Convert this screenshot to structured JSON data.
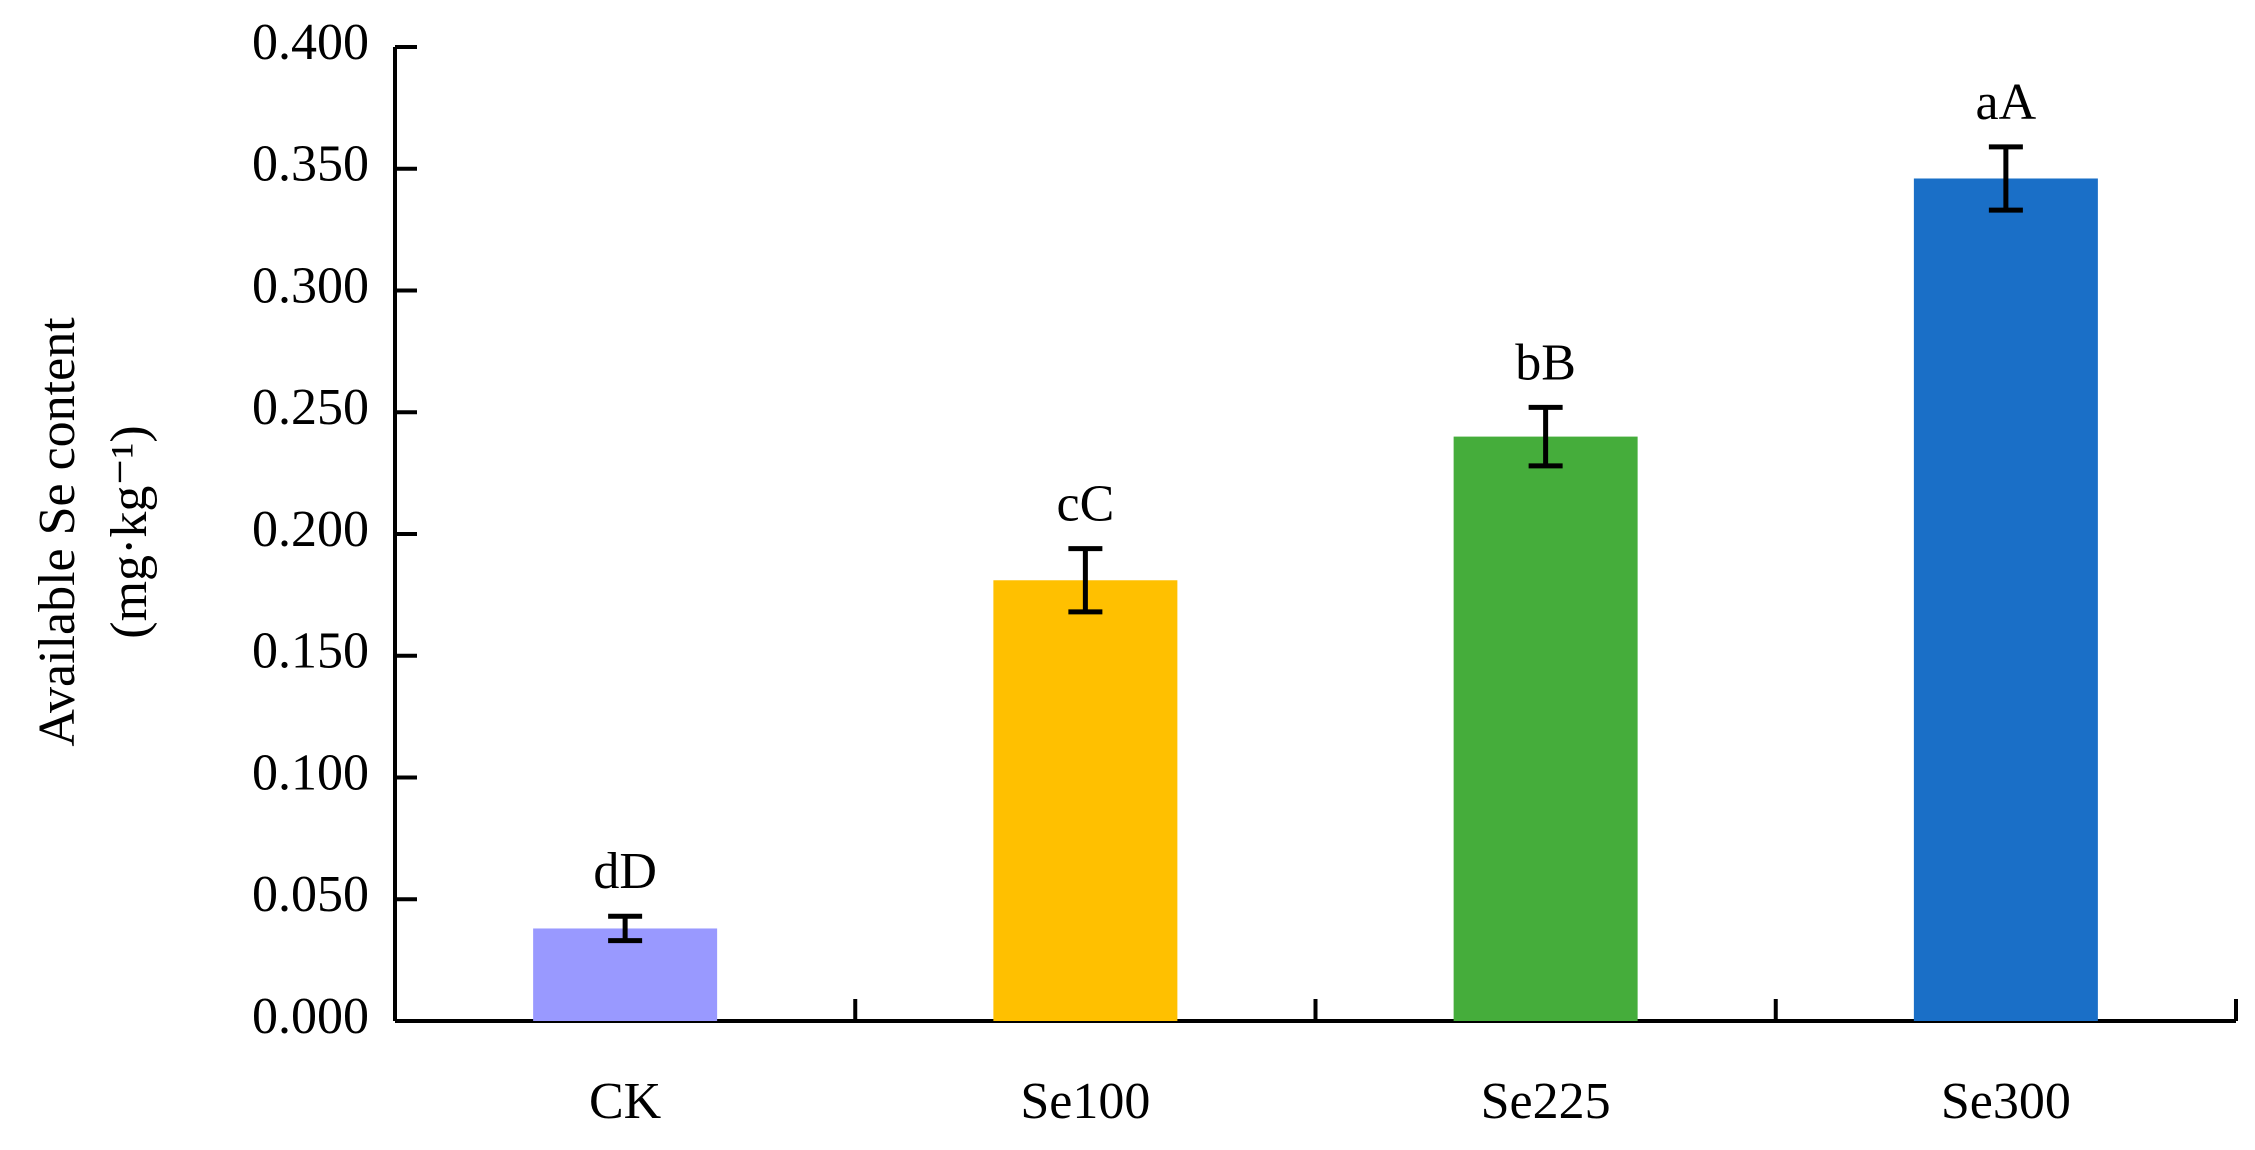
{
  "chart_data": {
    "type": "bar",
    "y_label_lines": [
      "Available Se content",
      "(mg·kg⁻¹)"
    ],
    "categories": [
      "CK",
      "Se100",
      "Se225",
      "Se300"
    ],
    "values": [
      0.038,
      0.181,
      0.24,
      0.346
    ],
    "errors": [
      0.005,
      0.013,
      0.012,
      0.013
    ],
    "annotations": [
      "dD",
      "cC",
      "bB",
      "aA"
    ],
    "colors": [
      "#9999ff",
      "#ffc000",
      "#45ad3b",
      "#1a6fc7"
    ],
    "ylim": [
      0,
      0.4
    ],
    "yticks": [
      {
        "value": 0,
        "label": "0.000"
      },
      {
        "value": 0.05,
        "label": "0.050"
      },
      {
        "value": 0.1,
        "label": "0.100"
      },
      {
        "value": 0.15,
        "label": "0.150"
      },
      {
        "value": 0.2,
        "label": "0.200"
      },
      {
        "value": 0.25,
        "label": "0.250"
      },
      {
        "value": 0.3,
        "label": "0.300"
      },
      {
        "value": 0.35,
        "label": "0.350"
      },
      {
        "value": 0.4,
        "label": "0.400"
      }
    ],
    "grid": false
  }
}
